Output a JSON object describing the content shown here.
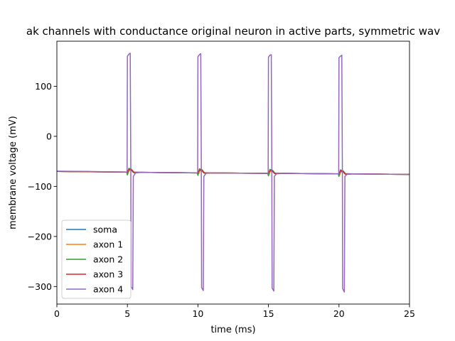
{
  "chart_data": {
    "type": "line",
    "title": "ak channels with conductance original neuron in active parts, symmetric wav",
    "xlabel": "time (ms)",
    "ylabel": "membrane voltage (mV)",
    "xlim": [
      0,
      25
    ],
    "ylim": [
      -335,
      190
    ],
    "xticks": [
      0,
      5,
      10,
      15,
      20,
      25
    ],
    "yticks": [
      -300,
      -200,
      -100,
      0,
      100
    ],
    "legend_position": "lower-left",
    "grid": false,
    "series": [
      {
        "name": "soma",
        "color": "#1f77b4",
        "points": [
          [
            0,
            -70
          ],
          [
            1,
            -70.3
          ],
          [
            2,
            -70.6
          ],
          [
            3,
            -70.9
          ],
          [
            4,
            -71.2
          ],
          [
            5,
            -71.5
          ],
          [
            5.1,
            -69
          ],
          [
            5.2,
            -67
          ],
          [
            5.3,
            -68
          ],
          [
            5.4,
            -71.5
          ],
          [
            6,
            -72
          ],
          [
            8,
            -72.5
          ],
          [
            10,
            -73
          ],
          [
            10.1,
            -70
          ],
          [
            10.2,
            -68
          ],
          [
            10.3,
            -69
          ],
          [
            10.4,
            -72.5
          ],
          [
            11,
            -73
          ],
          [
            13,
            -73.5
          ],
          [
            15,
            -74
          ],
          [
            15.1,
            -71
          ],
          [
            15.2,
            -69
          ],
          [
            15.3,
            -70
          ],
          [
            15.4,
            -73.5
          ],
          [
            16,
            -74
          ],
          [
            18,
            -74.5
          ],
          [
            20,
            -75
          ],
          [
            20.1,
            -72
          ],
          [
            20.2,
            -70
          ],
          [
            20.3,
            -71
          ],
          [
            20.4,
            -74.5
          ],
          [
            21,
            -75
          ],
          [
            23,
            -75.5
          ],
          [
            25,
            -76
          ]
        ]
      },
      {
        "name": "axon 1",
        "color": "#ff7f0e",
        "points": [
          [
            0,
            -70
          ],
          [
            1,
            -70.3
          ],
          [
            2,
            -70.6
          ],
          [
            3,
            -70.9
          ],
          [
            4,
            -71.2
          ],
          [
            5,
            -71.5
          ],
          [
            5.05,
            -74
          ],
          [
            5.15,
            -66
          ],
          [
            5.3,
            -67
          ],
          [
            5.45,
            -72
          ],
          [
            6,
            -72
          ],
          [
            8,
            -72.5
          ],
          [
            10,
            -73
          ],
          [
            10.05,
            -75
          ],
          [
            10.15,
            -67
          ],
          [
            10.3,
            -68
          ],
          [
            10.45,
            -73
          ],
          [
            11,
            -73
          ],
          [
            13,
            -73.5
          ],
          [
            15,
            -74
          ],
          [
            15.05,
            -76
          ],
          [
            15.15,
            -68
          ],
          [
            15.3,
            -69
          ],
          [
            15.45,
            -74
          ],
          [
            16,
            -74
          ],
          [
            18,
            -74.5
          ],
          [
            20,
            -75
          ],
          [
            20.05,
            -77
          ],
          [
            20.15,
            -69
          ],
          [
            20.3,
            -70
          ],
          [
            20.45,
            -75
          ],
          [
            21,
            -75
          ],
          [
            23,
            -75.5
          ],
          [
            25,
            -76
          ]
        ]
      },
      {
        "name": "axon 2",
        "color": "#2ca02c",
        "points": [
          [
            0,
            -70
          ],
          [
            1,
            -70.3
          ],
          [
            2,
            -70.6
          ],
          [
            3,
            -70.9
          ],
          [
            4,
            -71.2
          ],
          [
            4.95,
            -71.5
          ],
          [
            5,
            -77
          ],
          [
            5.1,
            -64
          ],
          [
            5.3,
            -66
          ],
          [
            5.5,
            -73
          ],
          [
            6,
            -72
          ],
          [
            8,
            -72.5
          ],
          [
            9.95,
            -73
          ],
          [
            10,
            -78
          ],
          [
            10.1,
            -65
          ],
          [
            10.3,
            -67
          ],
          [
            10.5,
            -74
          ],
          [
            11,
            -73
          ],
          [
            13,
            -73.5
          ],
          [
            14.95,
            -74
          ],
          [
            15,
            -79
          ],
          [
            15.1,
            -66
          ],
          [
            15.3,
            -68
          ],
          [
            15.5,
            -75
          ],
          [
            16,
            -74
          ],
          [
            18,
            -74.5
          ],
          [
            19.95,
            -75
          ],
          [
            20,
            -80
          ],
          [
            20.1,
            -67
          ],
          [
            20.3,
            -69
          ],
          [
            20.5,
            -76
          ],
          [
            21,
            -75
          ],
          [
            23,
            -75.5
          ],
          [
            25,
            -76
          ]
        ]
      },
      {
        "name": "axon 3",
        "color": "#d62728",
        "points": [
          [
            0,
            -70
          ],
          [
            1,
            -70.3
          ],
          [
            2,
            -70.6
          ],
          [
            3,
            -70.9
          ],
          [
            4,
            -71.2
          ],
          [
            5,
            -71.5
          ],
          [
            5.1,
            -66
          ],
          [
            5.25,
            -66.5
          ],
          [
            5.45,
            -72.5
          ],
          [
            6,
            -72
          ],
          [
            8,
            -72.5
          ],
          [
            10,
            -73
          ],
          [
            10.1,
            -67
          ],
          [
            10.25,
            -67.5
          ],
          [
            10.45,
            -73.5
          ],
          [
            11,
            -73
          ],
          [
            13,
            -73.5
          ],
          [
            15,
            -74
          ],
          [
            15.1,
            -68
          ],
          [
            15.25,
            -68.5
          ],
          [
            15.45,
            -74.5
          ],
          [
            16,
            -74
          ],
          [
            18,
            -74.5
          ],
          [
            20,
            -75
          ],
          [
            20.1,
            -69
          ],
          [
            20.25,
            -69.5
          ],
          [
            20.45,
            -75.5
          ],
          [
            21,
            -75
          ],
          [
            23,
            -75.5
          ],
          [
            25,
            -76
          ]
        ]
      },
      {
        "name": "axon 4",
        "color": "#9467bd",
        "points": [
          [
            0,
            -69.5
          ],
          [
            1,
            -69.8
          ],
          [
            2,
            -70.1
          ],
          [
            3,
            -70.5
          ],
          [
            4,
            -70.9
          ],
          [
            4.98,
            -71.2
          ],
          [
            5.0,
            160
          ],
          [
            5.1,
            164
          ],
          [
            5.2,
            166
          ],
          [
            5.24,
            -60
          ],
          [
            5.26,
            -300
          ],
          [
            5.38,
            -306
          ],
          [
            5.42,
            -80
          ],
          [
            5.6,
            -72
          ],
          [
            6,
            -72
          ],
          [
            8,
            -72.5
          ],
          [
            9.98,
            -72.8
          ],
          [
            10.0,
            159
          ],
          [
            10.1,
            163
          ],
          [
            10.2,
            165
          ],
          [
            10.24,
            -60
          ],
          [
            10.26,
            -302
          ],
          [
            10.38,
            -308
          ],
          [
            10.42,
            -80
          ],
          [
            10.6,
            -73
          ],
          [
            11,
            -73
          ],
          [
            13,
            -73.5
          ],
          [
            14.98,
            -74
          ],
          [
            15.0,
            158
          ],
          [
            15.1,
            162
          ],
          [
            15.2,
            163
          ],
          [
            15.24,
            -60
          ],
          [
            15.26,
            -303
          ],
          [
            15.38,
            -309
          ],
          [
            15.42,
            -80
          ],
          [
            15.6,
            -74
          ],
          [
            16,
            -74
          ],
          [
            18,
            -74.5
          ],
          [
            19.98,
            -75
          ],
          [
            20.0,
            157
          ],
          [
            20.1,
            160
          ],
          [
            20.2,
            162
          ],
          [
            20.24,
            -60
          ],
          [
            20.26,
            -304
          ],
          [
            20.38,
            -311
          ],
          [
            20.42,
            -80
          ],
          [
            20.6,
            -75
          ],
          [
            21,
            -75
          ],
          [
            23,
            -75.5
          ],
          [
            25,
            -76
          ]
        ]
      }
    ]
  }
}
